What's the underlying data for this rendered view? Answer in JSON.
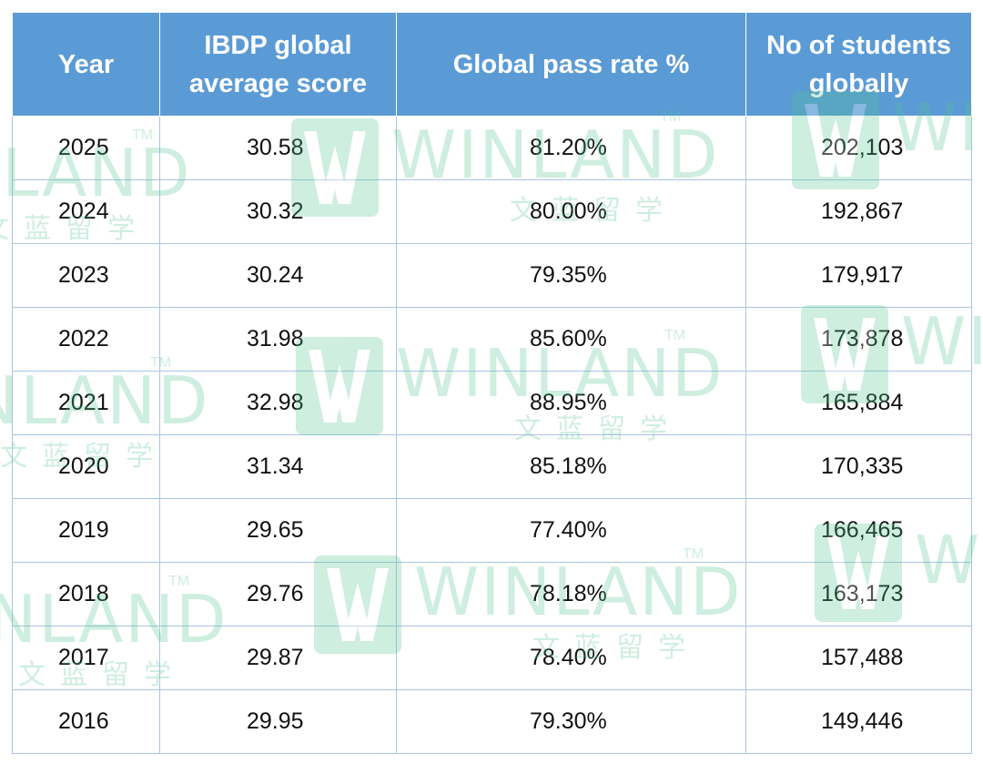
{
  "table": {
    "headers": [
      "Year",
      "IBDP global average score",
      "Global pass rate %",
      "No of students globally"
    ],
    "header_lines": [
      [
        "Year"
      ],
      [
        "IBDP global",
        "average score"
      ],
      [
        "Global pass rate %"
      ],
      [
        "No of students",
        "globally"
      ]
    ],
    "rows": [
      {
        "year": "2025",
        "score": "30.58",
        "rate": "81.20%",
        "students": "202,103"
      },
      {
        "year": "2024",
        "score": "30.32",
        "rate": "80.00%",
        "students": "192,867"
      },
      {
        "year": "2023",
        "score": "30.24",
        "rate": "79.35%",
        "students": "179,917"
      },
      {
        "year": "2022",
        "score": "31.98",
        "rate": "85.60%",
        "students": "173,878"
      },
      {
        "year": "2021",
        "score": "32.98",
        "rate": "88.95%",
        "students": "165,884"
      },
      {
        "year": "2020",
        "score": "31.34",
        "rate": "85.18%",
        "students": "170,335"
      },
      {
        "year": "2019",
        "score": "29.65",
        "rate": "77.40%",
        "students": "166,465"
      },
      {
        "year": "2018",
        "score": "29.76",
        "rate": "78.18%",
        "students": "163,173"
      },
      {
        "year": "2017",
        "score": "29.87",
        "rate": "78.40%",
        "students": "157,488"
      },
      {
        "year": "2016",
        "score": "29.95",
        "rate": "79.30%",
        "students": "149,446"
      }
    ]
  },
  "colors": {
    "header_bg": "#5b9bd5",
    "header_text": "#ffffff",
    "grid": "#a9c4e4",
    "watermark": "#52c48f"
  },
  "watermark": {
    "brand": "WINLAND",
    "chinese": "文蓝留学",
    "trademark": "TM",
    "icon": "winland-w-logo-icon"
  }
}
